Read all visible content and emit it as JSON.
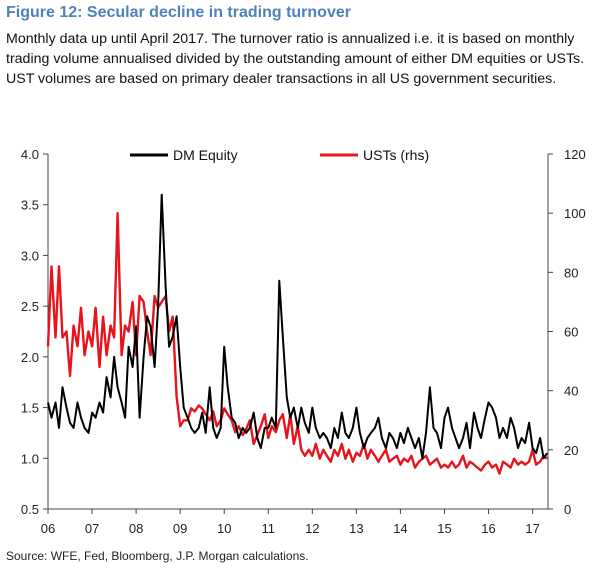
{
  "header": {
    "title": "Figure 12: Secular decline in trading turnover",
    "subtitle": "Monthly data up until April 2017. The turnover ratio is annualized i.e. it is based on monthly trading volume annualised divided by the outstanding amount of either DM equities or USTs. UST volumes are based on primary dealer transactions in all US government securities."
  },
  "source": "Source: WFE, Fed, Bloomberg, J.P. Morgan calculations.",
  "colors": {
    "dm_equity": "#000000",
    "usts": "#e8141c"
  },
  "chart_data": {
    "type": "line",
    "x_tick_labels": [
      "06",
      "07",
      "08",
      "09",
      "10",
      "11",
      "12",
      "13",
      "14",
      "15",
      "16",
      "17"
    ],
    "x_tick_years": [
      2006,
      2007,
      2008,
      2009,
      2010,
      2011,
      2012,
      2013,
      2014,
      2015,
      2016,
      2017
    ],
    "xlim": [
      2006,
      2017.35
    ],
    "y_left": {
      "ylim": [
        0.5,
        4.0
      ],
      "ticks": [
        "0.5",
        "1.0",
        "1.5",
        "2.0",
        "2.5",
        "3.0",
        "3.5",
        "4.0"
      ]
    },
    "y_right": {
      "ylim": [
        0,
        120
      ],
      "ticks": [
        "0",
        "20",
        "40",
        "60",
        "80",
        "100",
        "120"
      ]
    },
    "legend_position": "top",
    "series": [
      {
        "name": "DM Equity",
        "axis": "left",
        "x": [
          2006.0,
          2006.08,
          2006.17,
          2006.25,
          2006.33,
          2006.42,
          2006.5,
          2006.58,
          2006.67,
          2006.75,
          2006.83,
          2006.92,
          2007.0,
          2007.08,
          2007.17,
          2007.25,
          2007.33,
          2007.42,
          2007.5,
          2007.58,
          2007.67,
          2007.75,
          2007.83,
          2007.92,
          2008.0,
          2008.08,
          2008.17,
          2008.25,
          2008.33,
          2008.42,
          2008.5,
          2008.58,
          2008.67,
          2008.75,
          2008.83,
          2008.92,
          2009.0,
          2009.08,
          2009.17,
          2009.25,
          2009.33,
          2009.42,
          2009.5,
          2009.58,
          2009.67,
          2009.75,
          2009.83,
          2009.92,
          2010.0,
          2010.08,
          2010.17,
          2010.25,
          2010.33,
          2010.42,
          2010.5,
          2010.58,
          2010.67,
          2010.75,
          2010.83,
          2010.92,
          2011.0,
          2011.08,
          2011.17,
          2011.25,
          2011.33,
          2011.42,
          2011.5,
          2011.58,
          2011.67,
          2011.75,
          2011.83,
          2011.92,
          2012.0,
          2012.08,
          2012.17,
          2012.25,
          2012.33,
          2012.42,
          2012.5,
          2012.58,
          2012.67,
          2012.75,
          2012.83,
          2012.92,
          2013.0,
          2013.08,
          2013.17,
          2013.25,
          2013.33,
          2013.42,
          2013.5,
          2013.58,
          2013.67,
          2013.75,
          2013.83,
          2013.92,
          2014.0,
          2014.08,
          2014.17,
          2014.25,
          2014.33,
          2014.42,
          2014.5,
          2014.58,
          2014.67,
          2014.75,
          2014.83,
          2014.92,
          2015.0,
          2015.08,
          2015.17,
          2015.25,
          2015.33,
          2015.42,
          2015.5,
          2015.58,
          2015.67,
          2015.75,
          2015.83,
          2015.92,
          2016.0,
          2016.08,
          2016.17,
          2016.25,
          2016.33,
          2016.42,
          2016.5,
          2016.58,
          2016.67,
          2016.75,
          2016.83,
          2016.92,
          2017.0,
          2017.08,
          2017.17,
          2017.25,
          2017.33
        ],
        "values": [
          1.55,
          1.4,
          1.55,
          1.3,
          1.7,
          1.5,
          1.35,
          1.3,
          1.55,
          1.4,
          1.3,
          1.25,
          1.45,
          1.4,
          1.55,
          1.45,
          1.8,
          1.6,
          2.0,
          1.7,
          1.55,
          1.4,
          2.1,
          1.9,
          2.3,
          1.4,
          2.0,
          2.4,
          2.3,
          1.9,
          2.5,
          3.6,
          2.7,
          2.1,
          2.2,
          2.4,
          1.9,
          1.5,
          1.4,
          1.3,
          1.25,
          1.3,
          1.45,
          1.25,
          1.7,
          1.3,
          1.2,
          1.3,
          2.1,
          1.7,
          1.4,
          1.35,
          1.2,
          1.3,
          1.25,
          1.3,
          1.45,
          1.2,
          1.1,
          1.3,
          1.3,
          1.4,
          1.3,
          2.75,
          2.2,
          1.6,
          1.4,
          1.5,
          1.3,
          1.5,
          1.35,
          1.25,
          1.5,
          1.3,
          1.2,
          1.25,
          1.2,
          1.1,
          1.3,
          1.2,
          1.45,
          1.25,
          1.2,
          1.3,
          1.5,
          1.25,
          1.1,
          1.2,
          1.25,
          1.3,
          1.4,
          1.2,
          1.1,
          1.25,
          1.2,
          1.1,
          1.25,
          1.15,
          1.3,
          1.2,
          1.1,
          1.2,
          1.0,
          1.25,
          1.7,
          1.3,
          1.25,
          1.1,
          1.4,
          1.5,
          1.3,
          1.2,
          1.1,
          1.2,
          1.35,
          1.1,
          1.45,
          1.3,
          1.2,
          1.4,
          1.55,
          1.5,
          1.4,
          1.2,
          1.3,
          1.2,
          1.4,
          1.3,
          1.1,
          1.2,
          1.15,
          1.35,
          1.1,
          1.05,
          1.2,
          1.0,
          1.05
        ]
      },
      {
        "name": "USTs (rhs)",
        "axis": "right",
        "x": [
          2006.0,
          2006.08,
          2006.17,
          2006.25,
          2006.33,
          2006.42,
          2006.5,
          2006.58,
          2006.67,
          2006.75,
          2006.83,
          2006.92,
          2007.0,
          2007.08,
          2007.17,
          2007.25,
          2007.33,
          2007.42,
          2007.5,
          2007.58,
          2007.67,
          2007.75,
          2007.83,
          2007.92,
          2008.0,
          2008.08,
          2008.17,
          2008.25,
          2008.33,
          2008.42,
          2008.5,
          2008.58,
          2008.67,
          2008.75,
          2008.83,
          2008.92,
          2009.0,
          2009.08,
          2009.17,
          2009.25,
          2009.33,
          2009.42,
          2009.5,
          2009.58,
          2009.67,
          2009.75,
          2009.83,
          2009.92,
          2010.0,
          2010.08,
          2010.17,
          2010.25,
          2010.33,
          2010.42,
          2010.5,
          2010.58,
          2010.67,
          2010.75,
          2010.83,
          2010.92,
          2011.0,
          2011.08,
          2011.17,
          2011.25,
          2011.33,
          2011.42,
          2011.5,
          2011.58,
          2011.67,
          2011.75,
          2011.83,
          2011.92,
          2012.0,
          2012.08,
          2012.17,
          2012.25,
          2012.33,
          2012.42,
          2012.5,
          2012.58,
          2012.67,
          2012.75,
          2012.83,
          2012.92,
          2013.0,
          2013.08,
          2013.17,
          2013.25,
          2013.33,
          2013.42,
          2013.5,
          2013.58,
          2013.67,
          2013.75,
          2013.83,
          2013.92,
          2014.0,
          2014.08,
          2014.17,
          2014.25,
          2014.33,
          2014.42,
          2014.5,
          2014.58,
          2014.67,
          2014.75,
          2014.83,
          2014.92,
          2015.0,
          2015.08,
          2015.17,
          2015.25,
          2015.33,
          2015.42,
          2015.5,
          2015.58,
          2015.67,
          2015.75,
          2015.83,
          2015.92,
          2016.0,
          2016.08,
          2016.17,
          2016.25,
          2016.33,
          2016.42,
          2016.5,
          2016.58,
          2016.67,
          2016.75,
          2016.83,
          2016.92,
          2017.0,
          2017.08,
          2017.17,
          2017.25,
          2017.33
        ],
        "values": [
          55,
          82,
          58,
          82,
          58,
          60,
          45,
          62,
          55,
          68,
          52,
          60,
          55,
          68,
          48,
          65,
          52,
          62,
          58,
          100,
          52,
          62,
          60,
          70,
          52,
          72,
          70,
          60,
          52,
          72,
          68,
          70,
          72,
          60,
          65,
          38,
          28,
          30,
          30,
          34,
          33,
          35,
          34,
          32,
          30,
          33,
          28,
          30,
          34,
          32,
          30,
          26,
          28,
          25,
          27,
          30,
          22,
          25,
          28,
          32,
          24,
          28,
          26,
          30,
          32,
          24,
          32,
          22,
          28,
          20,
          18,
          20,
          18,
          22,
          17,
          20,
          18,
          16,
          20,
          18,
          22,
          17,
          20,
          16,
          19,
          18,
          22,
          17,
          20,
          18,
          16,
          18,
          20,
          16,
          17,
          18,
          15,
          17,
          16,
          18,
          14,
          16,
          17,
          18,
          15,
          16,
          17,
          14,
          15,
          14,
          16,
          14,
          15,
          18,
          14,
          16,
          15,
          14,
          13,
          15,
          16,
          14,
          15,
          12,
          16,
          15,
          14,
          17,
          15,
          16,
          15,
          16,
          20,
          15,
          16,
          18,
          17
        ]
      }
    ]
  }
}
